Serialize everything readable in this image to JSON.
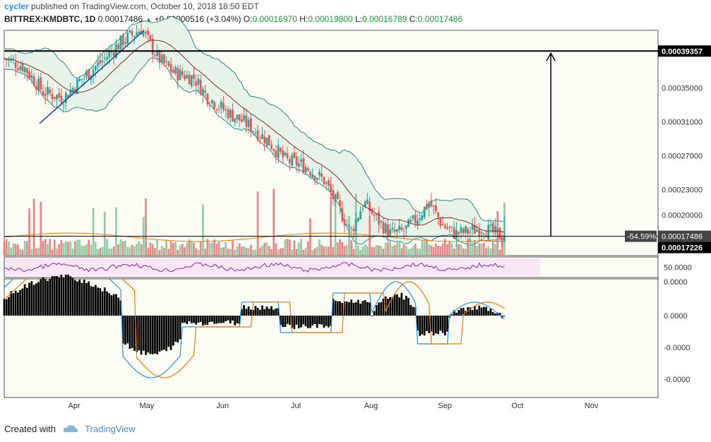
{
  "header": {
    "author": "cycler",
    "published_text": "published on TradingView.com, October 10, 2018 18:50 EDT",
    "symbol": "BITTREX:KMDBTC, 1D",
    "last_price": "0.00017486",
    "change": "+0.00000516 (+3.04%)",
    "change_arrow": "▲",
    "open_label": "O:",
    "open": "0.00016970",
    "high_label": "H:",
    "high": "0.00019800",
    "low_label": "L:",
    "low": "0.00016789",
    "close_label": "C:",
    "close": "0.00017486"
  },
  "footer": {
    "created_with": "Created with",
    "brand": "TradingView"
  },
  "colors": {
    "up": "#26a69a",
    "down": "#ef5350",
    "vol_up": "#7dc49a",
    "vol_down": "#e57373",
    "bb_fill": "#e8f4ea",
    "bb_line": "#2b8a8a",
    "ma": "#8b2e2e",
    "rsi": "#8e24aa",
    "macd": "#2196f3",
    "signal": "#f57c00",
    "trend": "#1e3fbf"
  },
  "chart_data": {
    "type": "candlestick",
    "x_axis_labels": [
      "Apr",
      "May",
      "Jun",
      "Jul",
      "Aug",
      "Sep",
      "Oct",
      "Nov"
    ],
    "price_axis_labels": [
      "0.00035000",
      "0.00031000",
      "0.00027000",
      "0.00023000",
      "0.00020000"
    ],
    "price_ylim": [
      0.000152,
      0.000418
    ],
    "highlight_labels": {
      "resistance": "0.00039357",
      "current": "0.00017486",
      "low": "0.00017226",
      "pct": "-54.59%"
    },
    "resistance_level": 0.00039357,
    "current_level": 0.00017486,
    "trendline": [
      [
        0.054,
        0.000308
      ],
      [
        0.214,
        0.000418
      ]
    ],
    "close_path": [
      [
        0.0,
        0.000385
      ],
      [
        0.03,
        0.000375
      ],
      [
        0.06,
        0.000345
      ],
      [
        0.09,
        0.000338
      ],
      [
        0.12,
        0.000362
      ],
      [
        0.15,
        0.000382
      ],
      [
        0.18,
        0.000405
      ],
      [
        0.21,
        0.00042
      ],
      [
        0.235,
        0.000385
      ],
      [
        0.26,
        0.000368
      ],
      [
        0.29,
        0.000362
      ],
      [
        0.31,
        0.00034
      ],
      [
        0.34,
        0.000322
      ],
      [
        0.37,
        0.000308
      ],
      [
        0.4,
        0.00029
      ],
      [
        0.43,
        0.000265
      ],
      [
        0.46,
        0.000258
      ],
      [
        0.49,
        0.00024
      ],
      [
        0.51,
        0.00021
      ],
      [
        0.53,
        0.00018
      ],
      [
        0.55,
        0.000215
      ],
      [
        0.57,
        0.000195
      ],
      [
        0.59,
        0.000178
      ],
      [
        0.61,
        0.00018
      ],
      [
        0.63,
        0.000195
      ],
      [
        0.65,
        0.000215
      ],
      [
        0.67,
        0.000188
      ],
      [
        0.69,
        0.000178
      ],
      [
        0.71,
        0.00018
      ],
      [
        0.73,
        0.000185
      ],
      [
        0.75,
        0.000178
      ],
      [
        0.765,
        0.00017486
      ]
    ],
    "rsi_label": "50.0000",
    "macd_axis_labels": [
      "0.0000",
      "0.0000",
      "-0.0000",
      "-0.0000"
    ]
  }
}
